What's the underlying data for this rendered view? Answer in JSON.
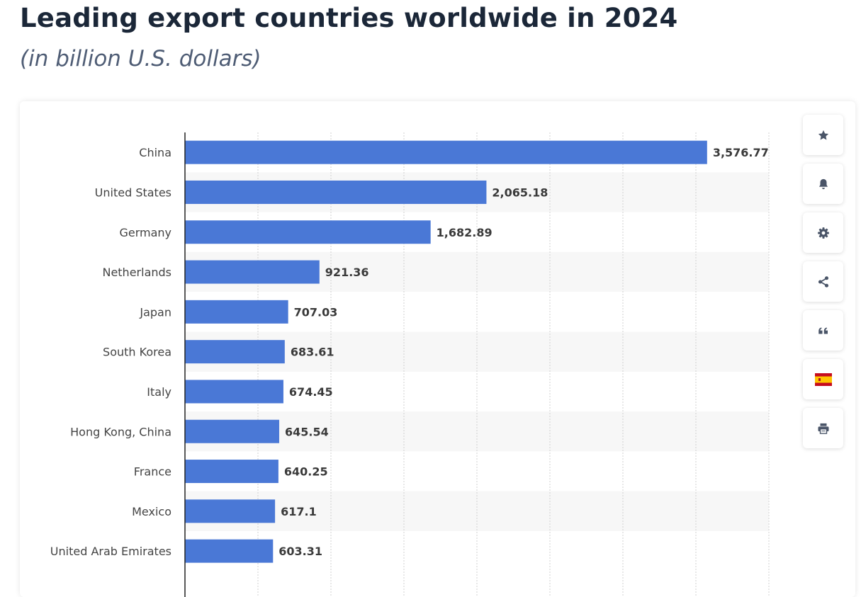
{
  "header": {
    "title": "Leading export countries worldwide in 2024",
    "subtitle": "(in billion U.S. dollars)"
  },
  "chart_data": {
    "type": "bar",
    "orientation": "horizontal",
    "title": "Leading export countries worldwide in 2024",
    "subtitle": "(in billion U.S. dollars)",
    "categories": [
      "China",
      "United States",
      "Germany",
      "Netherlands",
      "Japan",
      "South Korea",
      "Italy",
      "Hong Kong, China",
      "France",
      "Mexico",
      "United Arab Emirates"
    ],
    "values": [
      3576.77,
      2065.18,
      1682.89,
      921.36,
      707.03,
      683.61,
      674.45,
      645.54,
      640.25,
      617.1,
      603.31
    ],
    "value_labels": [
      "3,576.77",
      "2,065.18",
      "1,682.89",
      "921.36",
      "707.03",
      "683.61",
      "674.45",
      "645.54",
      "640.25",
      "617.1",
      "603.31"
    ],
    "xlim": [
      0,
      4000
    ],
    "grid_step": 500,
    "grid": true,
    "xlabel": "",
    "ylabel": "",
    "bar_color": "#4a78d6"
  },
  "toolbar": {
    "items": [
      {
        "name": "favorite-button",
        "icon": "star-icon"
      },
      {
        "name": "notification-button",
        "icon": "bell-icon"
      },
      {
        "name": "settings-button",
        "icon": "gear-icon"
      },
      {
        "name": "share-button",
        "icon": "share-icon"
      },
      {
        "name": "citation-button",
        "icon": "quote-icon"
      },
      {
        "name": "language-button",
        "icon": "spain-flag-icon"
      },
      {
        "name": "print-button",
        "icon": "printer-icon"
      }
    ]
  },
  "colors": {
    "bar": "#4a78d6",
    "title": "#1b2738",
    "subtitle": "#4f5d75",
    "label": "#444444",
    "value_label": "#3a3a3a",
    "icon": "#4a5568",
    "stripe": "#f7f7f7",
    "grid": "#d0d0d0"
  }
}
